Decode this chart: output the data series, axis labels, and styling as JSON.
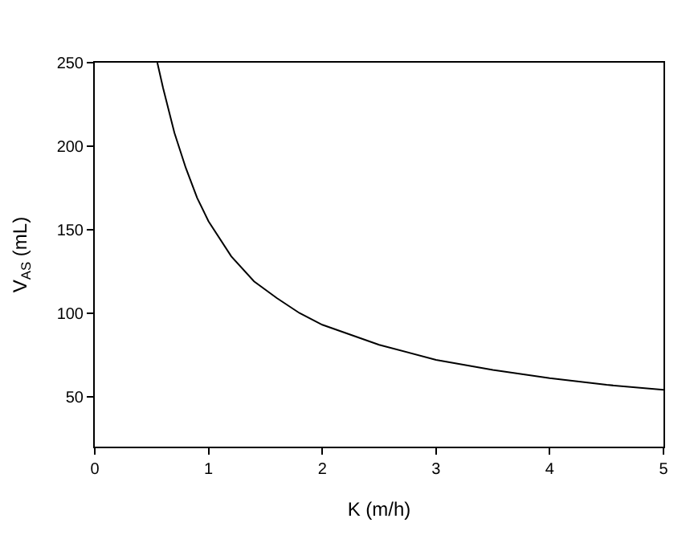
{
  "chart_data": {
    "type": "line",
    "xlabel": "K (m/h)",
    "ylabel": "V$_{AS}$ (mL)",
    "x": [
      0.55,
      0.6,
      0.7,
      0.8,
      0.9,
      1.0,
      1.2,
      1.4,
      1.6,
      1.8,
      2.0,
      2.5,
      3.0,
      3.5,
      4.0,
      4.5,
      5.0
    ],
    "series": [
      {
        "color": "#000000",
        "values": [
          250,
          235,
          208,
          187,
          169,
          155,
          134,
          119,
          109,
          100,
          93,
          81,
          72,
          66,
          61,
          57,
          54
        ]
      }
    ],
    "xlim": [
      0,
      5
    ],
    "ylim": [
      20,
      250
    ],
    "xticks": [
      0,
      1,
      2,
      3,
      4,
      5
    ],
    "yticks": [
      50,
      100,
      150,
      200,
      250
    ],
    "marker": "none",
    "line_style": "solid"
  }
}
